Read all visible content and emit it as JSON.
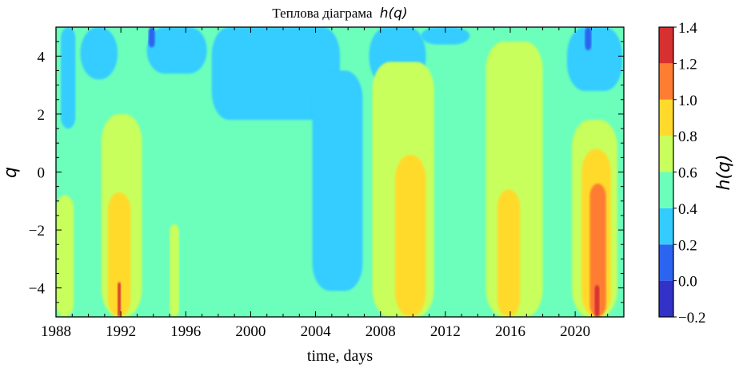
{
  "chart_data": {
    "type": "heatmap",
    "title": "Теплова діаграма h(q)",
    "title_prefix": "Теплова діаграма",
    "title_math": "h(q)",
    "xlabel": "time, days",
    "ylabel": "q",
    "colorbar_label": "h(q)",
    "xlim": [
      1988,
      2023
    ],
    "ylim": [
      -5,
      5
    ],
    "x_ticks": [
      1988,
      1992,
      1996,
      2000,
      2004,
      2008,
      2012,
      2016,
      2020
    ],
    "x_tick_labels": [
      "1988",
      "1992",
      "1996",
      "2000",
      "2004",
      "2008",
      "2012",
      "2016",
      "2020"
    ],
    "y_ticks": [
      4,
      2,
      0,
      -2,
      -4
    ],
    "y_tick_labels": [
      "4",
      "2",
      "0",
      "−2",
      "−4"
    ],
    "colorbar_levels": [
      -0.2,
      0.0,
      0.2,
      0.4,
      0.6,
      0.8,
      1.0,
      1.2,
      1.4
    ],
    "colorbar_tick_labels": [
      "−0.2",
      "0.0",
      "0.2",
      "0.4",
      "0.6",
      "0.8",
      "1.0",
      "1.2",
      "1.4"
    ],
    "colorbar_colors": [
      "#3232c8",
      "#2a64f0",
      "#34ccff",
      "#6bffbb",
      "#c8ff5c",
      "#ffda2c",
      "#ff7d32",
      "#d63030"
    ],
    "contour_regions": [
      {
        "level": 0.5,
        "x_range": [
          1988,
          2023
        ],
        "q_range": [
          -5,
          5
        ]
      },
      {
        "level": 0.3,
        "x_range": [
          1988.3,
          1989.2
        ],
        "q_range": [
          1.5,
          5
        ]
      },
      {
        "level": 0.3,
        "x_range": [
          1989.5,
          1991.8
        ],
        "q_range": [
          3.2,
          5
        ]
      },
      {
        "level": 0.3,
        "x_range": [
          1993.6,
          1997.3
        ],
        "q_range": [
          3.4,
          5
        ]
      },
      {
        "level": 0.3,
        "x_range": [
          1997.6,
          2005.5
        ],
        "q_range": [
          1.8,
          5
        ]
      },
      {
        "level": 0.3,
        "x_range": [
          2003.8,
          2006.9
        ],
        "q_range": [
          -4.1,
          3.5
        ]
      },
      {
        "level": 0.3,
        "x_range": [
          2007.3,
          2010.8
        ],
        "q_range": [
          3.0,
          5
        ]
      },
      {
        "level": 0.3,
        "x_range": [
          2010.5,
          2013.5
        ],
        "q_range": [
          4.4,
          5
        ]
      },
      {
        "level": 0.3,
        "x_range": [
          2019.5,
          2022.9
        ],
        "q_range": [
          2.8,
          5
        ]
      },
      {
        "level": 0.1,
        "x_range": [
          1993.7,
          1994.1
        ],
        "q_range": [
          4.3,
          5
        ]
      },
      {
        "level": 0.1,
        "x_range": [
          2020.6,
          2021.0
        ],
        "q_range": [
          4.2,
          5
        ]
      },
      {
        "level": 0.7,
        "x_range": [
          1988,
          1989.1
        ],
        "q_range": [
          -5,
          -0.8
        ]
      },
      {
        "level": 0.7,
        "x_range": [
          1990.8,
          1993.3
        ],
        "q_range": [
          -5,
          2.0
        ]
      },
      {
        "level": 0.7,
        "x_range": [
          1995.0,
          1995.6
        ],
        "q_range": [
          -5,
          -1.8
        ]
      },
      {
        "level": 0.7,
        "x_range": [
          2007.5,
          2011.3
        ],
        "q_range": [
          -5,
          3.8
        ]
      },
      {
        "level": 0.7,
        "x_range": [
          2014.5,
          2018.0
        ],
        "q_range": [
          -5,
          4.5
        ]
      },
      {
        "level": 0.7,
        "x_range": [
          2019.8,
          2022.6
        ],
        "q_range": [
          -5,
          1.8
        ]
      },
      {
        "level": 0.9,
        "x_range": [
          1991.2,
          1992.6
        ],
        "q_range": [
          -5,
          -0.7
        ]
      },
      {
        "level": 0.9,
        "x_range": [
          2008.9,
          2010.8
        ],
        "q_range": [
          -5,
          0.6
        ]
      },
      {
        "level": 0.9,
        "x_range": [
          2015.2,
          2016.6
        ],
        "q_range": [
          -5,
          -0.6
        ]
      },
      {
        "level": 0.9,
        "x_range": [
          2020.4,
          2022.2
        ],
        "q_range": [
          -5,
          0.8
        ]
      },
      {
        "level": 1.1,
        "x_range": [
          2020.9,
          2021.9
        ],
        "q_range": [
          -5,
          -0.4
        ]
      },
      {
        "level": 1.3,
        "x_range": [
          1991.8,
          1992.0
        ],
        "q_range": [
          -5,
          -3.8
        ]
      },
      {
        "level": 1.3,
        "x_range": [
          2021.2,
          2021.5
        ],
        "q_range": [
          -5,
          -3.9
        ]
      }
    ],
    "grid": false,
    "legend": "colorbar at right"
  }
}
